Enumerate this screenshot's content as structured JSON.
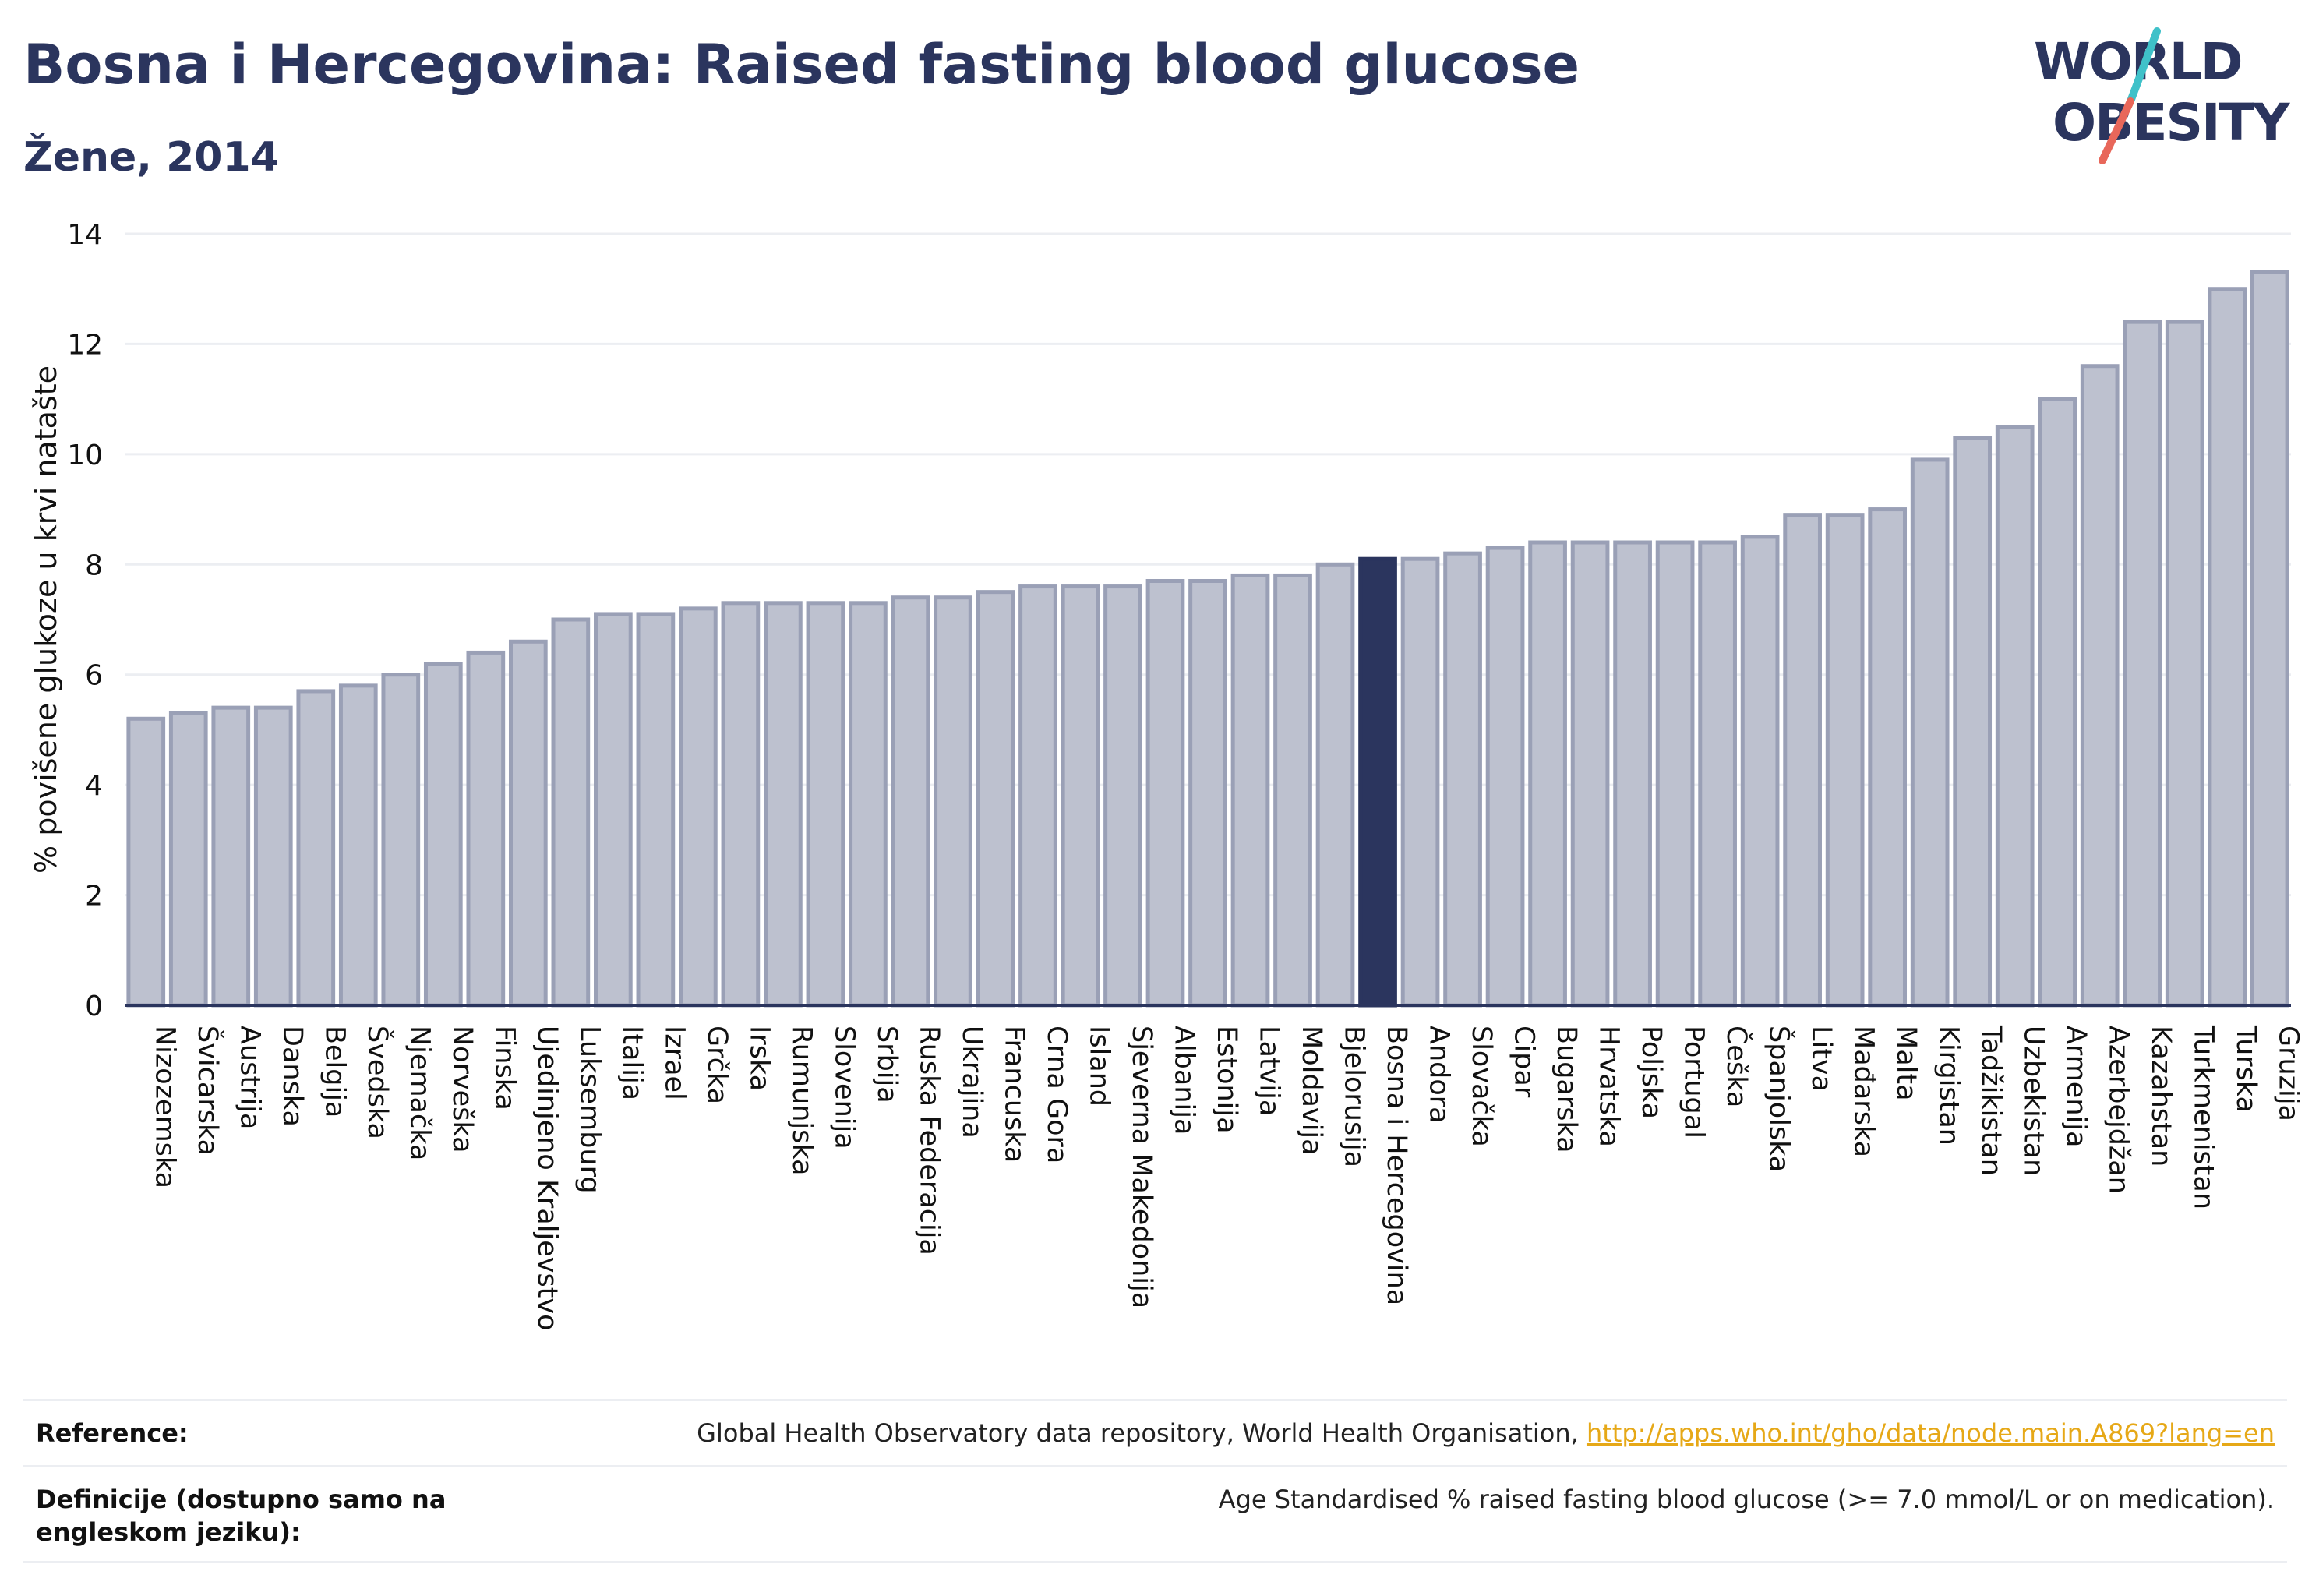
{
  "header": {
    "title": "Bosna i Hercegovina: Raised fasting blood glucose",
    "subtitle": "Žene, 2014"
  },
  "logo": {
    "line1": "WORLD",
    "line2": "OBESITY",
    "accent_color": "#e8675a",
    "accent_color_2": "#3fc1c9"
  },
  "colors": {
    "bar": "#bdc1cf",
    "bar_border": "#9aa0b6",
    "highlight": "#2b355e",
    "axis": "#2b355e",
    "grid": "#eceef2"
  },
  "chart_data": {
    "type": "bar",
    "ylabel": "% povišene glukoze u krvi natašte",
    "ylim": [
      0,
      14
    ],
    "yticks": [
      0,
      2,
      4,
      6,
      8,
      10,
      12,
      14
    ],
    "grid": true,
    "highlight": "Bosna i Hercegovina",
    "categories": [
      "Nizozemska",
      "Švicarska",
      "Austrija",
      "Danska",
      "Belgija",
      "Švedska",
      "Njemačka",
      "Norveška",
      "Finska",
      "Ujedinjeno Kraljevstvo",
      "Luksemburg",
      "Italija",
      "Izrael",
      "Grčka",
      "Irska",
      "Rumunjska",
      "Slovenija",
      "Srbija",
      "Ruska Federacija",
      "Ukrajina",
      "Francuska",
      "Crna Gora",
      "Island",
      "Sjeverna Makedonija",
      "Albanija",
      "Estonija",
      "Latvija",
      "Moldavija",
      "Bjelorusija",
      "Bosna i Hercegovina",
      "Andora",
      "Slovačka",
      "Cipar",
      "Bugarska",
      "Hrvatska",
      "Poljska",
      "Portugal",
      "Češka",
      "Španjolska",
      "Litva",
      "Mađarska",
      "Malta",
      "Kirgistan",
      "Tadžikistan",
      "Uzbekistan",
      "Armenija",
      "Azerbejdžan",
      "Kazahstan",
      "Turkmenistan",
      "Turska",
      "Gruzija"
    ],
    "values": [
      5.2,
      5.3,
      5.4,
      5.4,
      5.7,
      5.8,
      6.0,
      6.2,
      6.4,
      6.6,
      7.0,
      7.1,
      7.1,
      7.2,
      7.3,
      7.3,
      7.3,
      7.3,
      7.4,
      7.4,
      7.5,
      7.6,
      7.6,
      7.6,
      7.7,
      7.7,
      7.8,
      7.8,
      8.0,
      8.1,
      8.1,
      8.2,
      8.3,
      8.4,
      8.4,
      8.4,
      8.4,
      8.4,
      8.5,
      8.9,
      8.9,
      9.0,
      9.9,
      10.3,
      10.5,
      11.0,
      11.6,
      12.4,
      12.4,
      13.0,
      13.3
    ]
  },
  "footer": {
    "reference_label": "Reference:",
    "reference_text": "Global Health Observatory data repository, World Health Organisation, ",
    "reference_link": "http://apps.who.int/gho/data/node.main.A869?lang=en",
    "definition_label": "Definicije (dostupno samo na engleskom jeziku):",
    "definition_text": "Age Standardised % raised fasting blood glucose (>= 7.0 mmol/L or on medication)."
  }
}
